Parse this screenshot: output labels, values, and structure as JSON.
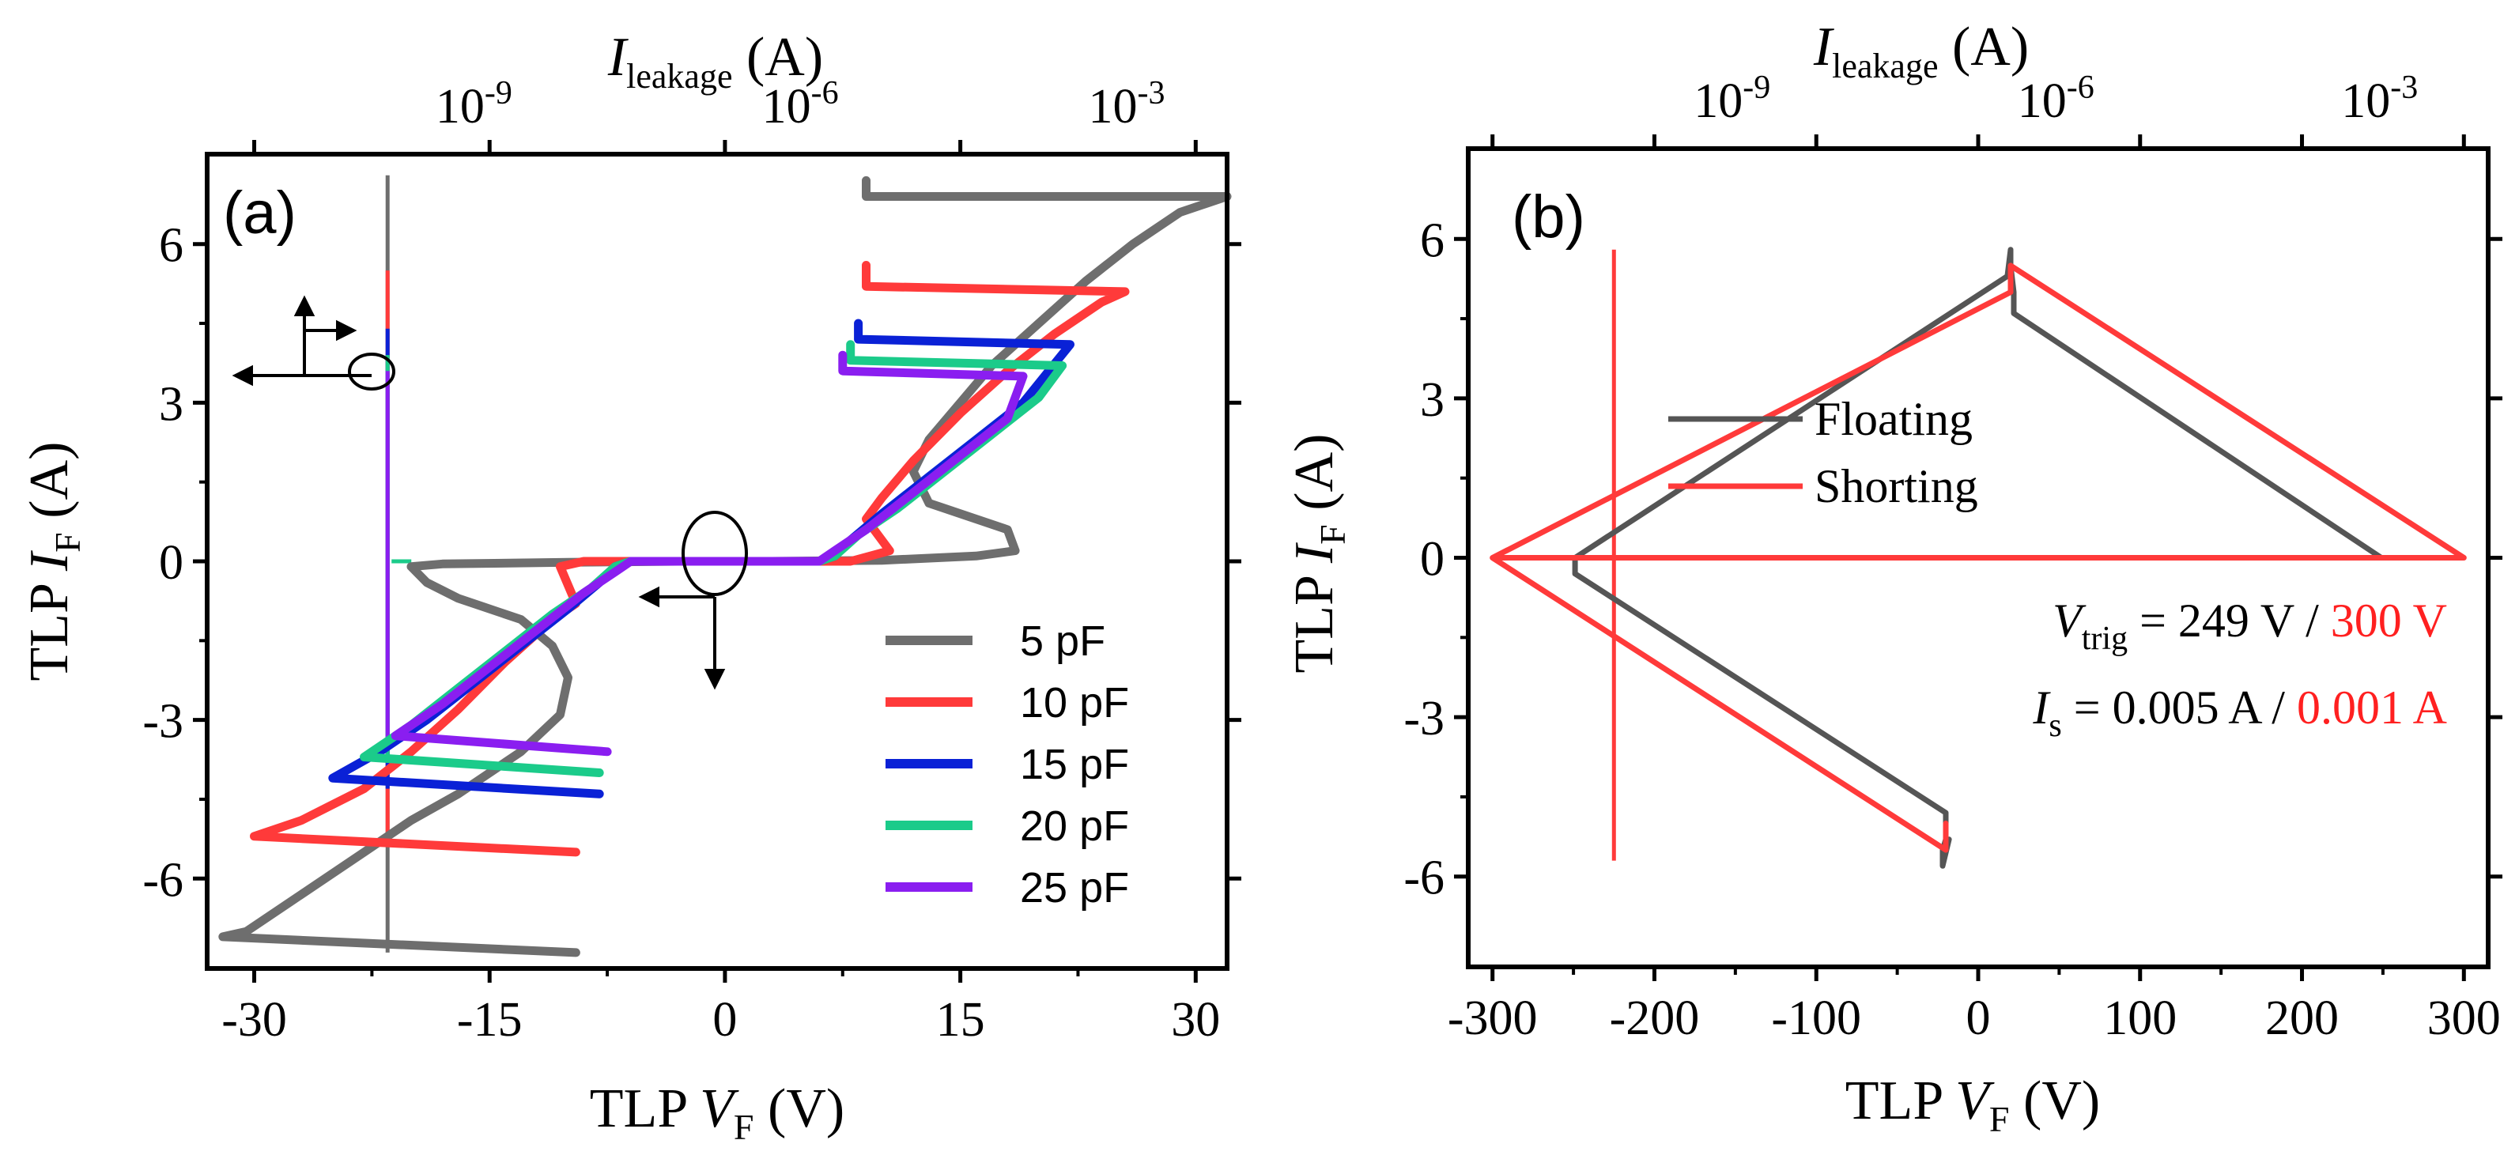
{
  "chart_data": [
    {
      "panel": "a",
      "type": "line",
      "panel_label": "(a)",
      "xlabel": {
        "prefix": "TLP ",
        "var": "V",
        "sub": "F",
        "unit": " (V)"
      },
      "ylabel": {
        "prefix": "TLP ",
        "var": "I",
        "sub": "F",
        "unit": " (A)"
      },
      "top_axis_label": {
        "var": "I",
        "sub": "leakage",
        "unit": " (A)"
      },
      "xlim": [
        -33,
        32
      ],
      "ylim": [
        -7.7,
        7.7
      ],
      "x_ticks": [
        "-30",
        "-15",
        "0",
        "15",
        "30"
      ],
      "x_tick_values": [
        -30,
        -15,
        0,
        15,
        30
      ],
      "y_ticks": [
        "-6",
        "-3",
        "0",
        "3",
        "6"
      ],
      "y_tick_values": [
        -6,
        -3,
        0,
        3,
        6
      ],
      "top_ticks": [
        {
          "base": "10",
          "exp": "-9",
          "pos": -16
        },
        {
          "base": "10",
          "exp": "-6",
          "pos": 4.8
        },
        {
          "base": "10",
          "exp": "-3",
          "pos": 25.6
        }
      ],
      "legend": [
        {
          "label": "5  pF",
          "color": "#6e6e6e"
        },
        {
          "label": "10  pF",
          "color": "#ff3a3a"
        },
        {
          "label": "15  pF",
          "color": "#0a21d6"
        },
        {
          "label": "20  pF",
          "color": "#1bcb8a"
        },
        {
          "label": "25  pF",
          "color": "#8a1ef0"
        }
      ],
      "series": [
        {
          "name": "5 pF",
          "color": "#6e6e6e",
          "x": [
            -9.5,
            -32,
            -30.5,
            -27,
            -23,
            -20,
            -17,
            -13,
            -10.5,
            -10,
            -11,
            -13,
            -17,
            -19,
            -20,
            -18,
            -10,
            -3,
            0,
            3,
            10,
            16,
            18.5,
            18,
            13,
            12,
            13,
            15,
            17,
            20,
            23,
            26,
            29,
            32,
            9,
            9
          ],
          "y": [
            -7.4,
            -7.1,
            -7.0,
            -6.3,
            -5.5,
            -4.9,
            -4.4,
            -3.6,
            -2.9,
            -2.2,
            -1.6,
            -1.1,
            -0.7,
            -0.4,
            -0.1,
            -0.05,
            -0.02,
            0,
            0,
            0,
            0.02,
            0.1,
            0.2,
            0.6,
            1.1,
            1.7,
            2.3,
            3.0,
            3.7,
            4.5,
            5.3,
            6.0,
            6.6,
            6.9,
            6.9,
            7.2
          ]
        },
        {
          "name": "10 pF",
          "color": "#ff3a3a",
          "x": [
            -9.5,
            -30,
            -27,
            -23,
            -20,
            -17,
            -14,
            -11,
            -9.5,
            -10.5,
            -9,
            -3,
            0,
            3,
            8,
            10.5,
            9,
            10,
            12,
            15,
            18,
            21,
            24,
            25.5,
            9,
            9
          ],
          "y": [
            -5.5,
            -5.2,
            -4.9,
            -4.3,
            -3.6,
            -2.8,
            -1.9,
            -1.1,
            -0.8,
            -0.1,
            0,
            0,
            0,
            0,
            0,
            0.2,
            0.8,
            1.2,
            1.9,
            2.8,
            3.6,
            4.3,
            4.9,
            5.1,
            5.2,
            5.6
          ]
        },
        {
          "name": "15 pF",
          "color": "#0a21d6",
          "x": [
            -8,
            -25,
            -22,
            -19,
            -16,
            -13,
            -10,
            -8,
            -7,
            -6,
            -3,
            0,
            3,
            6,
            7,
            8,
            10,
            13,
            16,
            19,
            22,
            8.5,
            8.5
          ],
          "y": [
            -4.4,
            -4.1,
            -3.6,
            -3.0,
            -2.3,
            -1.6,
            -0.9,
            -0.4,
            -0.1,
            0,
            0,
            0,
            0,
            0,
            0.1,
            0.4,
            0.9,
            1.6,
            2.3,
            3.0,
            4.1,
            4.2,
            4.5
          ]
        },
        {
          "name": "20 pF",
          "color": "#1bcb8a",
          "x": [
            -8,
            -23,
            -20,
            -17,
            -14,
            -11,
            -8.5,
            -7,
            -6,
            -3,
            0,
            3,
            6,
            7,
            8.5,
            11,
            14,
            17,
            20,
            21.5,
            8,
            8
          ],
          "y": [
            -4.0,
            -3.7,
            -3.1,
            -2.4,
            -1.7,
            -1.0,
            -0.5,
            -0.1,
            0,
            0,
            0,
            0,
            0,
            0.1,
            0.5,
            1.0,
            1.7,
            2.4,
            3.1,
            3.7,
            3.8,
            4.1
          ]
        },
        {
          "name": "25 pF",
          "color": "#8a1ef0",
          "x": [
            -7.5,
            -21,
            -18,
            -15,
            -12,
            -9,
            -7,
            -6,
            -3,
            0,
            3,
            6,
            7,
            9,
            12,
            15,
            18,
            19,
            7.5,
            7.5
          ],
          "y": [
            -3.6,
            -3.3,
            -2.7,
            -2.0,
            -1.3,
            -0.6,
            -0.2,
            0,
            0,
            0,
            0,
            0,
            0.2,
            0.6,
            1.3,
            2.0,
            2.7,
            3.5,
            3.6,
            3.9
          ]
        }
      ],
      "vertical_marker": {
        "x": -21.5,
        "ymin": -7.4,
        "ymax": 7.3
      },
      "marker_colors": [
        "#6e6e6e",
        "#ff3a3a",
        "#0a21d6",
        "#1bcb8a",
        "#8a1ef0"
      ]
    },
    {
      "panel": "b",
      "type": "line",
      "panel_label": "(b)",
      "xlabel": {
        "prefix": "TLP ",
        "var": "V",
        "sub": "F",
        "unit": " (V)"
      },
      "ylabel": {
        "prefix": "TLP ",
        "var": "I",
        "sub": "F",
        "unit": " (A)"
      },
      "top_axis_label": {
        "var": "I",
        "sub": "leakage",
        "unit": " (A)"
      },
      "xlim": [
        -315,
        315
      ],
      "ylim": [
        -7.7,
        7.7
      ],
      "x_ticks": [
        "-300",
        "-200",
        "-100",
        "0",
        "100",
        "200",
        "300"
      ],
      "x_tick_values": [
        -300,
        -200,
        -100,
        0,
        100,
        200,
        300
      ],
      "y_ticks": [
        "-6",
        "-3",
        "0",
        "3",
        "6"
      ],
      "y_tick_values": [
        -6,
        -3,
        0,
        3,
        6
      ],
      "top_ticks": [
        {
          "base": "10",
          "exp": "-9",
          "pos": -152
        },
        {
          "base": "10",
          "exp": "-6",
          "pos": 48
        },
        {
          "base": "10",
          "exp": "-3",
          "pos": 248
        }
      ],
      "legend": [
        {
          "label": "Floating",
          "color": "#555555"
        },
        {
          "label": "Shorting",
          "color": "#ff3a3a"
        }
      ],
      "series": [
        {
          "name": "Floating",
          "color": "#555555",
          "x": [
            -249,
            249,
            249,
            22,
            22,
            20,
            20,
            18,
            -249,
            -249,
            -20,
            -20,
            -22,
            -22,
            -18
          ],
          "y": [
            0,
            0,
            0,
            4.6,
            5.0,
            5.5,
            5.8,
            5.3,
            0,
            -0.3,
            -4.8,
            -5.3,
            -5.5,
            -5.8,
            -5.3
          ]
        },
        {
          "name": "Shorting",
          "color": "#ff3a3a",
          "x": [
            -300,
            300,
            300,
            20,
            20,
            -300,
            -300,
            -20,
            -20
          ],
          "y": [
            0,
            0,
            0,
            5.5,
            5.0,
            0,
            0,
            -5.5,
            -5.0
          ]
        }
      ],
      "vertical_marker": {
        "x": -225,
        "ymin": -5.7,
        "ymax": 5.8,
        "color": "#ff3a3a"
      },
      "annotations": {
        "vtrig": {
          "var": "V",
          "sub": "trig",
          "black": " = 249 V / ",
          "red": "300 V"
        },
        "is": {
          "var": "I",
          "sub": "s",
          "black": " = 0.005 A / ",
          "red": "0.001 A"
        }
      }
    }
  ]
}
